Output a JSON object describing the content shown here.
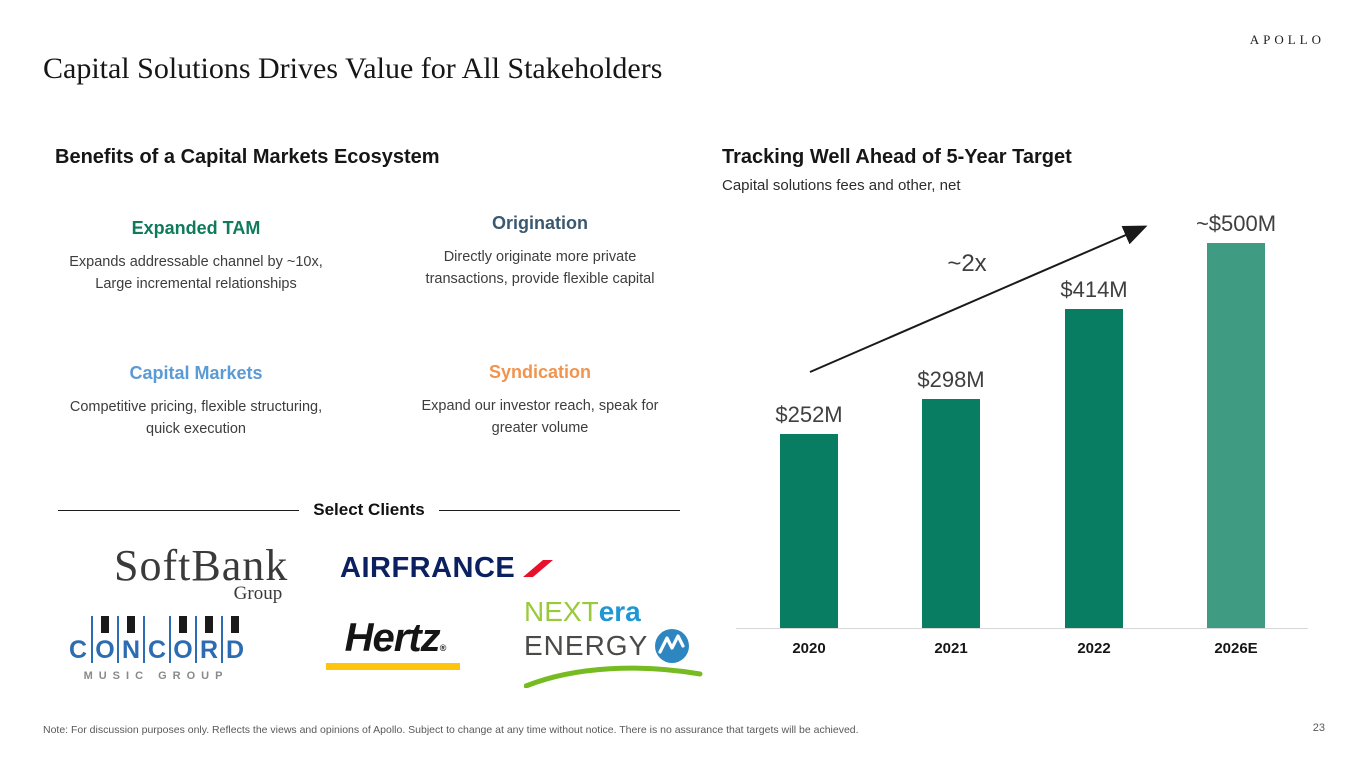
{
  "header": {
    "brand": "APOLLO",
    "title": "Capital Solutions Drives Value for All Stakeholders"
  },
  "benefits": {
    "heading": "Benefits of a Capital Markets Ecosystem",
    "items": [
      {
        "title": "Expanded TAM",
        "color": "#0f7b5c",
        "description": "Expands addressable channel by ~10x,\nLarge incremental relationships"
      },
      {
        "title": "Origination",
        "color": "#3a5971",
        "description": "Directly originate more private\ntransactions, provide flexible capital"
      },
      {
        "title": "Capital Markets",
        "color": "#5b9bd5",
        "description": "Competitive pricing, flexible structuring,\nquick execution"
      },
      {
        "title": "Syndication",
        "color": "#f0944e",
        "description": "Expand our investor reach, speak for\ngreater volume"
      }
    ],
    "select_clients_label": "Select Clients"
  },
  "clients": {
    "softbank": {
      "name": "SoftBank",
      "sub": "Group"
    },
    "airfrance": {
      "name": "AIRFRANCE"
    },
    "concord": {
      "letters": "CONCORD",
      "sub": "MUSIC GROUP"
    },
    "hertz": {
      "name": "Hertz",
      "reg": "®"
    },
    "nextera": {
      "part1": "NEXT",
      "part2": "era",
      "part3": "ENERGY"
    }
  },
  "chart_data": {
    "type": "bar",
    "title": "Tracking Well Ahead of 5-Year Target",
    "subtitle": "Capital solutions fees and other, net",
    "categories": [
      "2020",
      "2021",
      "2022",
      "2026E"
    ],
    "values": [
      252,
      298,
      414,
      500
    ],
    "value_labels": [
      "$252M",
      "$298M",
      "$414M",
      "~$500M"
    ],
    "series_name": "Capital solutions fees and other, net ($M)",
    "bar_colors": [
      "#087d62",
      "#087d62",
      "#087d62",
      "#409b83"
    ],
    "annotation": "~2x",
    "annotation_meaning": "arrow from 2020 bar to 2026E target showing roughly 2x growth",
    "ylim": [
      0,
      520
    ],
    "grid": false,
    "legend": "none",
    "baseline_color": "#d8d8d8"
  },
  "footer": {
    "note": "Note: For discussion purposes only. Reflects the views and opinions of Apollo. Subject to change at any time without notice. There is no assurance that targets will be achieved.",
    "page_number": "23"
  }
}
